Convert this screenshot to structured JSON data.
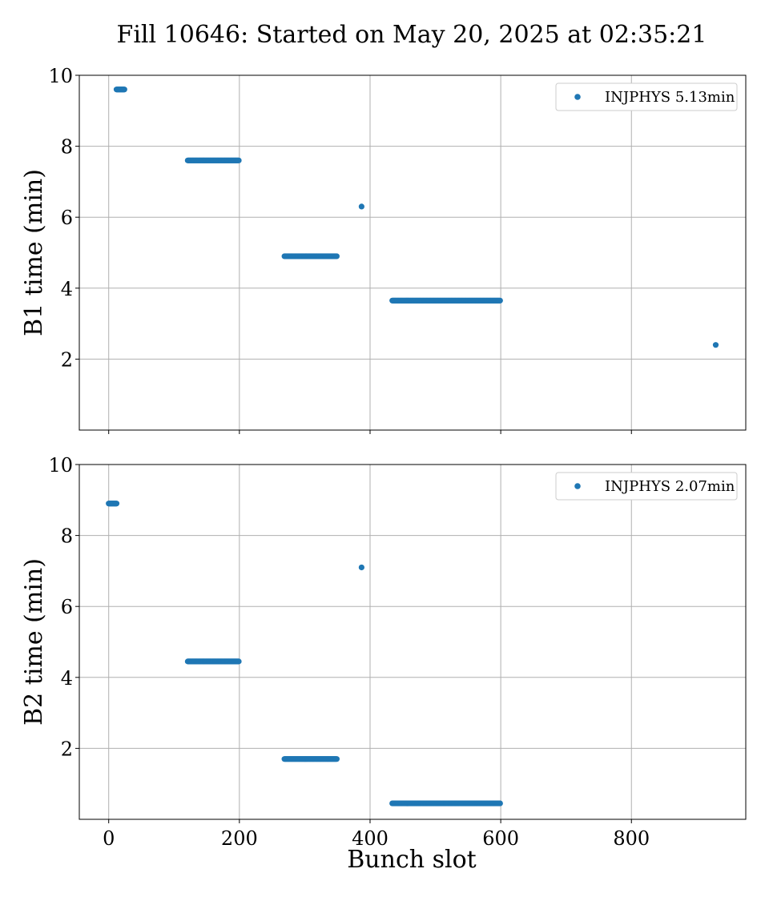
{
  "chart_data": {
    "type": "scatter",
    "title": "Fill 10646: Started on May 20, 2025 at 02:35:21",
    "xlabel": "Bunch slot",
    "xlim": [
      -45,
      975
    ],
    "xticks": [
      0,
      200,
      400,
      600,
      800
    ],
    "grid": true,
    "marker_color": "#1f77b4",
    "panels": [
      {
        "ylabel": "B1 time (min)",
        "ylim": [
          0,
          10
        ],
        "yticks": [
          2,
          4,
          6,
          8,
          10
        ],
        "legend_position": "top-right",
        "series": [
          {
            "name": "INJPHYS 5.13min",
            "points": [
              {
                "x_start": 12,
                "x_end": 24,
                "y": 9.6
              },
              {
                "x_start": 121,
                "x_end": 199,
                "y": 7.6
              },
              {
                "x_start": 269,
                "x_end": 349,
                "y": 4.9
              },
              {
                "x_start": 387,
                "x_end": 387,
                "y": 6.3
              },
              {
                "x_start": 434,
                "x_end": 599,
                "y": 3.65
              },
              {
                "x_start": 929,
                "x_end": 929,
                "y": 2.4
              }
            ]
          }
        ]
      },
      {
        "ylabel": "B2 time (min)",
        "ylim": [
          0,
          10
        ],
        "yticks": [
          2,
          4,
          6,
          8,
          10
        ],
        "legend_position": "top-right",
        "series": [
          {
            "name": "INJPHYS 2.07min",
            "points": [
              {
                "x_start": 0,
                "x_end": 12,
                "y": 8.9
              },
              {
                "x_start": 121,
                "x_end": 199,
                "y": 4.45
              },
              {
                "x_start": 269,
                "x_end": 349,
                "y": 1.7
              },
              {
                "x_start": 387,
                "x_end": 387,
                "y": 7.1
              },
              {
                "x_start": 434,
                "x_end": 599,
                "y": 0.45
              }
            ]
          }
        ]
      }
    ]
  }
}
